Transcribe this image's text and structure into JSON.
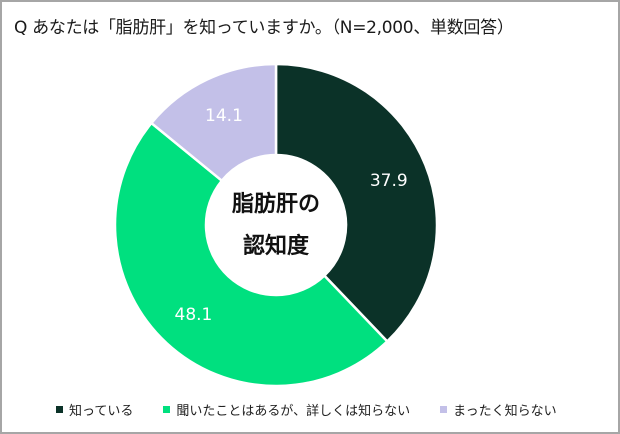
{
  "title": "Q あなたは「脂肪肝」を知っていますか。（N=2,000、単数回答）",
  "center_label": {
    "line1": "脂肪肝の",
    "line2": "認知度"
  },
  "legend": [
    {
      "label": "知っている",
      "color": "#0b3228"
    },
    {
      "label": "聞いたことはあるが、詳しくは知らない",
      "color": "#00e07f"
    },
    {
      "label": "まったく知らない",
      "color": "#c3c0e8"
    }
  ],
  "chart_data": {
    "type": "pie",
    "subtype": "donut",
    "title": "Q あなたは「脂肪肝」を知っていますか。（N=2,000、単数回答）",
    "center_text": "脂肪肝の認知度",
    "categories": [
      "知っている",
      "聞いたことはあるが、詳しくは知らない",
      "まったく知らない"
    ],
    "values": [
      37.9,
      48.1,
      14.1
    ],
    "unit": "%",
    "colors": [
      "#0b3228",
      "#00e07f",
      "#c3c0e8"
    ],
    "labels": [
      "37.9",
      "48.1",
      "14.1"
    ],
    "legend_position": "bottom",
    "start_angle": "12 o'clock, clockwise",
    "n": 2000
  }
}
